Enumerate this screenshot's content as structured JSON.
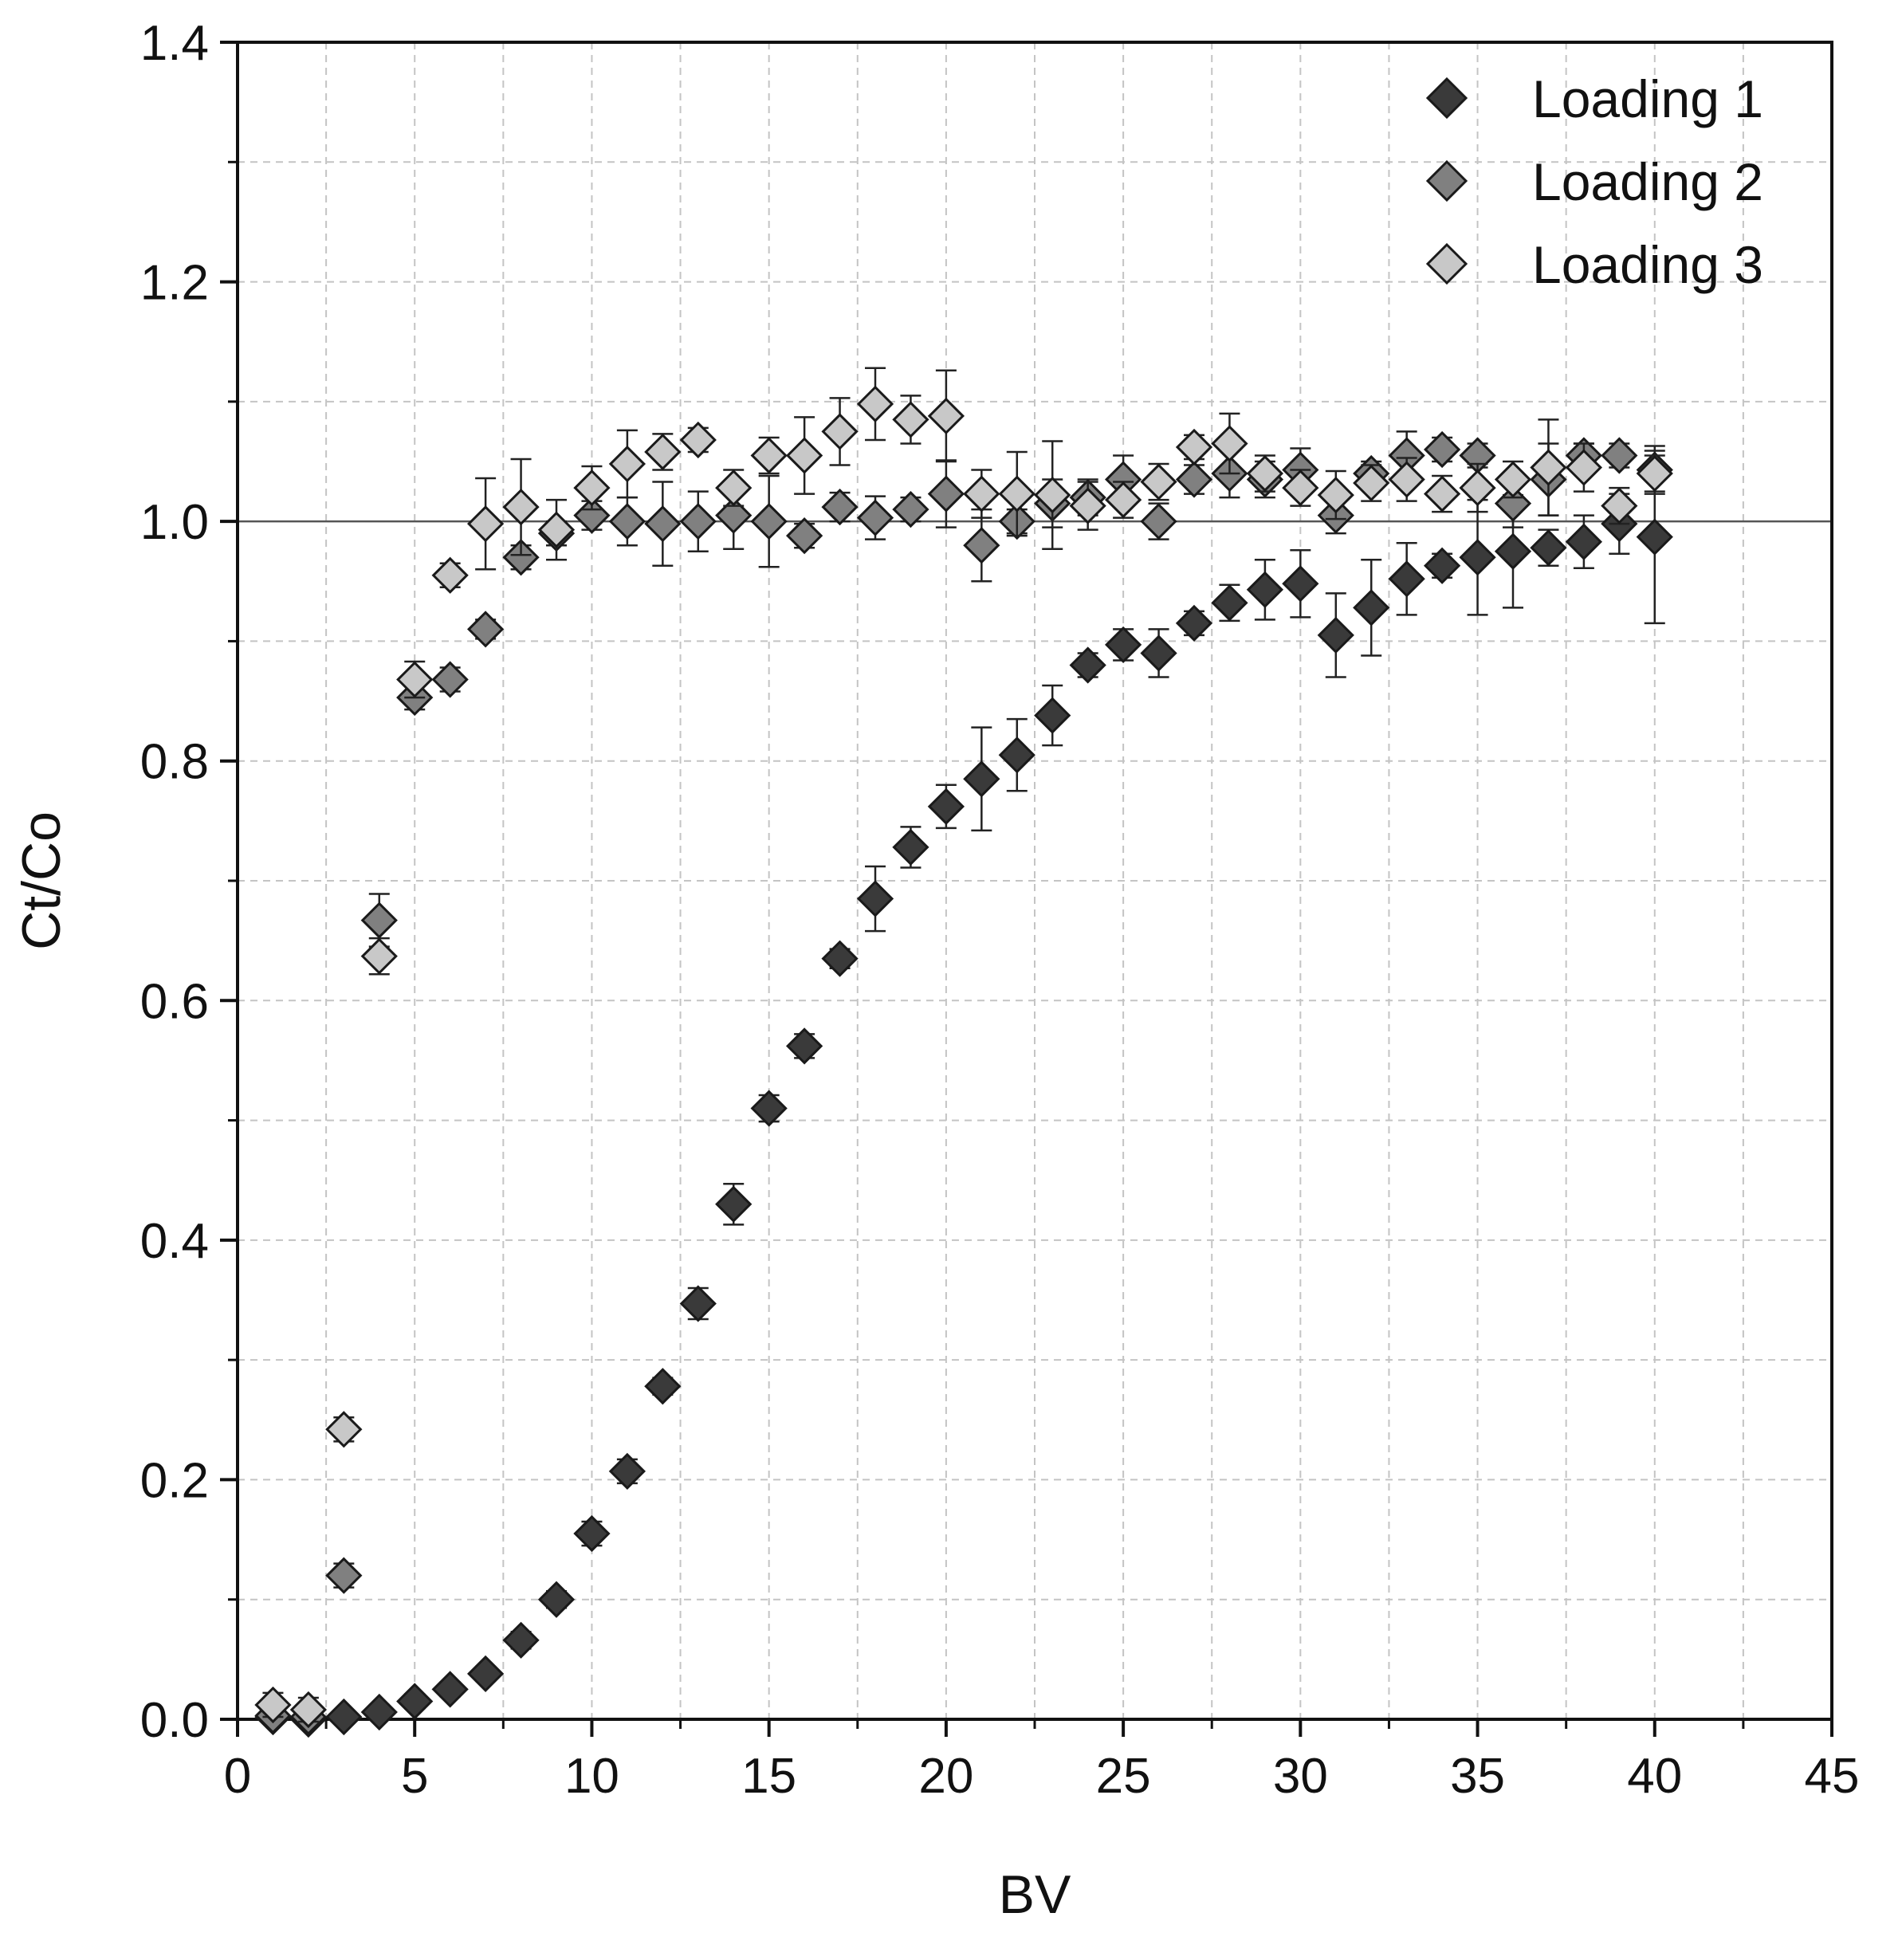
{
  "chart_data": {
    "type": "scatter",
    "title": "",
    "xlabel": "BV",
    "ylabel": "Ct/Co",
    "xlim": [
      0,
      45
    ],
    "ylim": [
      0,
      1.4
    ],
    "xticks": [
      0,
      5,
      10,
      15,
      20,
      25,
      30,
      35,
      40,
      45
    ],
    "yticks": [
      0.0,
      0.2,
      0.4,
      0.6,
      0.8,
      1.0,
      1.2,
      1.4
    ],
    "xtick_labels": [
      "0",
      "5",
      "10",
      "15",
      "20",
      "25",
      "30",
      "35",
      "40",
      "45"
    ],
    "ytick_labels": [
      "0.0",
      "0.2",
      "0.4",
      "0.6",
      "0.8",
      "1.0",
      "1.2",
      "1.4"
    ],
    "grid": true,
    "reference_line_y": 1.0,
    "legend_position": "top-right",
    "series": [
      {
        "name": "Loading 1",
        "color": "#3a3a3a",
        "x": [
          1,
          2,
          3,
          4,
          5,
          6,
          7,
          8,
          9,
          10,
          11,
          12,
          13,
          14,
          15,
          16,
          17,
          18,
          19,
          20,
          21,
          22,
          23,
          24,
          25,
          26,
          27,
          28,
          29,
          30,
          31,
          32,
          33,
          34,
          35,
          36,
          37,
          38,
          39,
          40
        ],
        "y": [
          0.002,
          0.0,
          0.002,
          0.006,
          0.015,
          0.025,
          0.038,
          0.066,
          0.1,
          0.155,
          0.207,
          0.278,
          0.347,
          0.43,
          0.51,
          0.562,
          0.635,
          0.685,
          0.728,
          0.762,
          0.785,
          0.805,
          0.838,
          0.88,
          0.897,
          0.89,
          0.915,
          0.932,
          0.943,
          0.948,
          0.905,
          0.928,
          0.952,
          0.963,
          0.97,
          0.975,
          0.978,
          0.983,
          0.998,
          0.987
        ],
        "err": [
          0.005,
          0.003,
          0.005,
          0.006,
          0.006,
          0.006,
          0.006,
          0.007,
          0.007,
          0.01,
          0.01,
          0.007,
          0.013,
          0.017,
          0.011,
          0.01,
          0.008,
          0.027,
          0.017,
          0.018,
          0.043,
          0.03,
          0.025,
          0.01,
          0.013,
          0.02,
          0.01,
          0.015,
          0.025,
          0.028,
          0.035,
          0.04,
          0.03,
          0.01,
          0.048,
          0.047,
          0.015,
          0.022,
          0.025,
          0.072
        ]
      },
      {
        "name": "Loading 2",
        "color": "#808080",
        "x": [
          1,
          2,
          3,
          4,
          5,
          6,
          7,
          8,
          9,
          10,
          11,
          12,
          13,
          14,
          15,
          16,
          17,
          18,
          19,
          20,
          21,
          22,
          23,
          24,
          25,
          26,
          27,
          28,
          29,
          30,
          31,
          32,
          33,
          34,
          35,
          36,
          37,
          38,
          39,
          40
        ],
        "y": [
          0.003,
          0.002,
          0.12,
          0.667,
          0.853,
          0.868,
          0.91,
          0.97,
          0.99,
          1.005,
          1.0,
          0.998,
          1.0,
          1.005,
          1.0,
          0.988,
          1.012,
          1.003,
          1.01,
          1.023,
          0.98,
          1.0,
          1.015,
          1.02,
          1.035,
          1.0,
          1.035,
          1.04,
          1.035,
          1.043,
          1.005,
          1.04,
          1.055,
          1.06,
          1.055,
          1.015,
          1.035,
          1.055,
          1.055,
          1.043
        ],
        "err": [
          0.005,
          0.005,
          0.01,
          0.022,
          0.01,
          0.01,
          0.008,
          0.01,
          0.01,
          0.012,
          0.02,
          0.035,
          0.025,
          0.028,
          0.038,
          0.01,
          0.012,
          0.018,
          0.01,
          0.028,
          0.03,
          0.01,
          0.02,
          0.015,
          0.02,
          0.015,
          0.012,
          0.02,
          0.015,
          0.018,
          0.015,
          0.01,
          0.02,
          0.01,
          0.01,
          0.02,
          0.03,
          0.01,
          0.01,
          0.02
        ]
      },
      {
        "name": "Loading 3",
        "color": "#c8c8c8",
        "x": [
          1,
          2,
          3,
          4,
          5,
          6,
          7,
          8,
          9,
          10,
          11,
          12,
          13,
          14,
          15,
          16,
          17,
          18,
          19,
          20,
          21,
          22,
          23,
          24,
          25,
          26,
          27,
          28,
          29,
          30,
          31,
          32,
          33,
          34,
          35,
          36,
          37,
          38,
          39,
          40
        ],
        "y": [
          0.012,
          0.008,
          0.242,
          0.637,
          0.868,
          0.955,
          0.998,
          1.012,
          0.993,
          1.028,
          1.048,
          1.058,
          1.068,
          1.028,
          1.055,
          1.055,
          1.075,
          1.098,
          1.085,
          1.088,
          1.023,
          1.023,
          1.022,
          1.013,
          1.018,
          1.033,
          1.062,
          1.065,
          1.04,
          1.028,
          1.022,
          1.032,
          1.035,
          1.023,
          1.028,
          1.035,
          1.045,
          1.045,
          1.013,
          1.04
        ],
        "err": [
          0.01,
          0.01,
          0.01,
          0.015,
          0.015,
          0.01,
          0.038,
          0.04,
          0.025,
          0.018,
          0.028,
          0.015,
          0.01,
          0.015,
          0.015,
          0.032,
          0.028,
          0.03,
          0.02,
          0.038,
          0.02,
          0.035,
          0.045,
          0.02,
          0.015,
          0.015,
          0.01,
          0.025,
          0.015,
          0.015,
          0.02,
          0.015,
          0.018,
          0.015,
          0.02,
          0.015,
          0.04,
          0.02,
          0.015,
          0.015
        ]
      }
    ]
  }
}
